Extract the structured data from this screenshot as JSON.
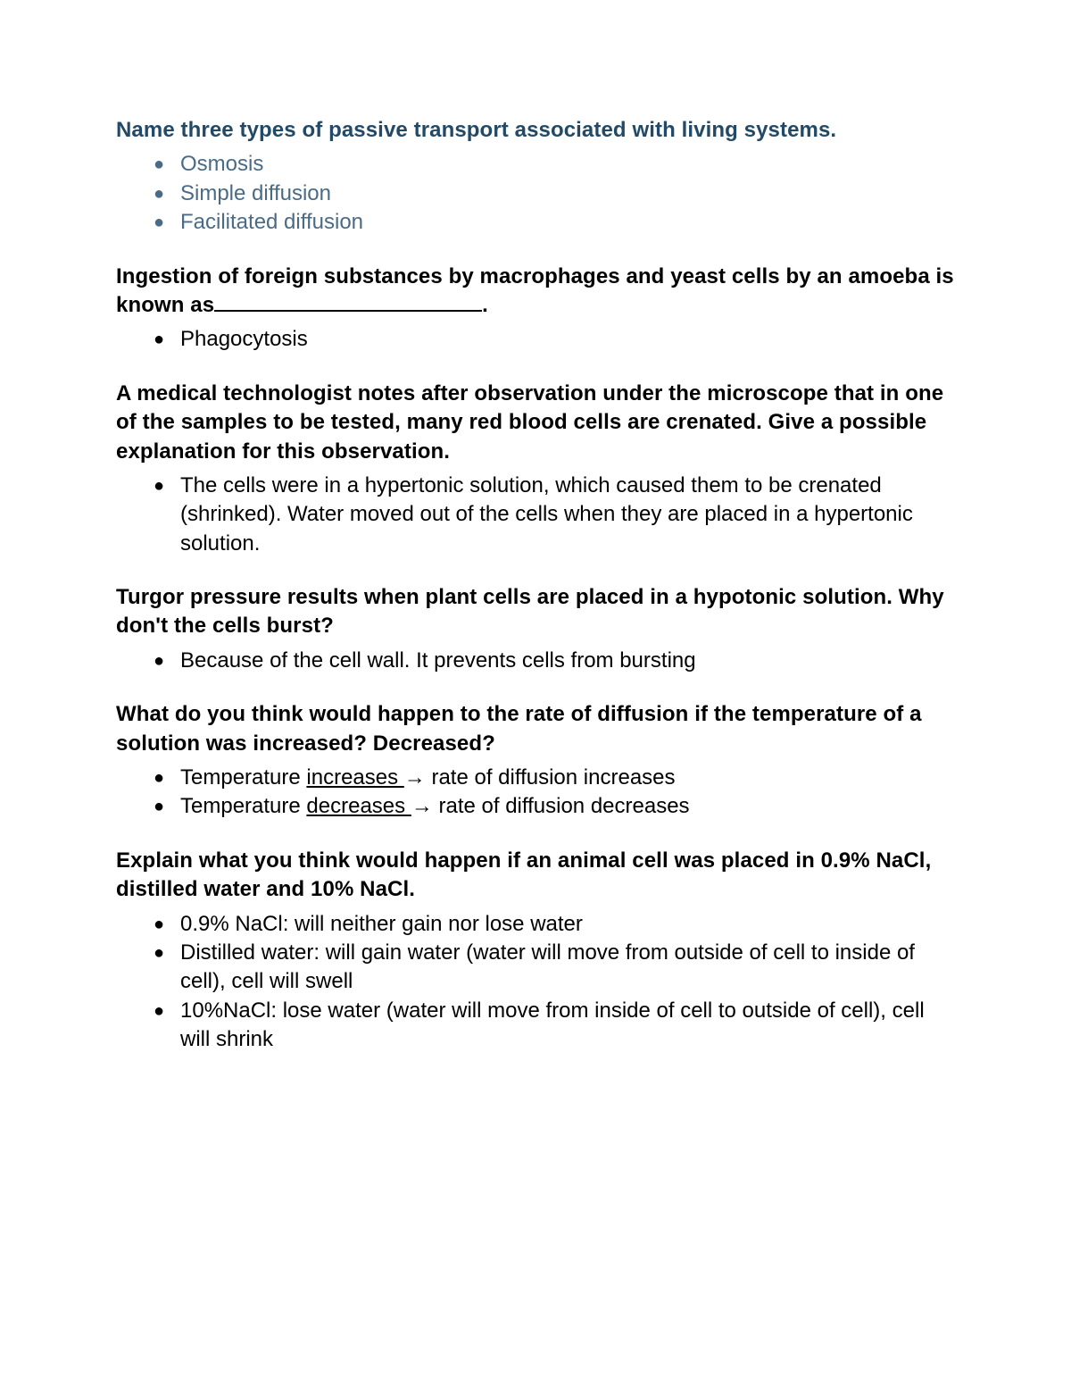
{
  "sections": [
    {
      "heading_color": "a",
      "answer_color": "a",
      "heading": "Name three types of passive transport associated with living systems.",
      "bullets": [
        [
          {
            "t": "Osmosis"
          }
        ],
        [
          {
            "t": "Simple diffusion"
          }
        ],
        [
          {
            "t": "Facilitated diffusion"
          }
        ]
      ]
    },
    {
      "heading_color": "b",
      "answer_color": "b",
      "heading_parts": [
        {
          "t": "Ingestion of foreign substances by macrophages and yeast cells by an amoeba is known as"
        },
        {
          "blank": true
        },
        {
          "t": "."
        }
      ],
      "bullets": [
        [
          {
            "t": "Phagocytosis"
          }
        ]
      ]
    },
    {
      "heading_color": "b",
      "answer_color": "b",
      "heading": "A medical technologist notes after observation under the microscope that in one of the samples to be tested, many red blood cells are crenated. Give a possible explanation for this observation.",
      "bullets": [
        [
          {
            "t": "The cells were in a hypertonic solution, which caused them to be crenated (shrinked). Water moved out of the cells when they are placed in a hypertonic solution."
          }
        ]
      ]
    },
    {
      "heading_color": "b",
      "answer_color": "b",
      "heading": "Turgor pressure results when plant cells are placed in a hypotonic solution. Why don't the cells burst?",
      "bullets": [
        [
          {
            "t": "Because of the cell wall. It prevents cells from bursting"
          }
        ]
      ]
    },
    {
      "heading_color": "b",
      "answer_color": "b",
      "heading": "What do you think would happen to the rate of diffusion if the temperature of a solution was increased? Decreased?",
      "bullets": [
        [
          {
            "t": "Temperature "
          },
          {
            "t": "increases ",
            "u": true
          },
          {
            "t": "→ rate of diffusion increases"
          }
        ],
        [
          {
            "t": "Temperature "
          },
          {
            "t": "decreases ",
            "u": true
          },
          {
            "t": "→ rate of diffusion decreases"
          }
        ]
      ]
    },
    {
      "heading_color": "b",
      "answer_color": "b",
      "heading": "Explain what you think would happen if an animal cell was placed in 0.9% NaCl, distilled water and 10% NaCl.",
      "bullets": [
        [
          {
            "t": "0.9% NaCl: will neither gain nor lose water"
          }
        ],
        [
          {
            "t": "Distilled water: will gain water (water will move from outside of cell to inside of cell), cell will swell"
          }
        ],
        [
          {
            "t": "10%NaCl: lose water (water will move from inside of cell to outside of cell), cell will shrink"
          }
        ]
      ]
    }
  ],
  "colors": {
    "heading_a": "#224a67",
    "heading_b": "#000000",
    "answer_a": "#4a6b85",
    "answer_b": "#000000",
    "background": "#ffffff"
  }
}
